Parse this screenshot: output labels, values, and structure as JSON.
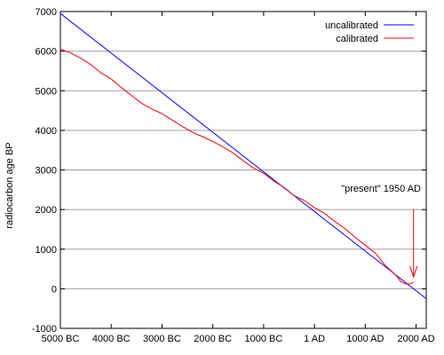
{
  "chart_data": {
    "type": "line",
    "title": "",
    "xlabel": "",
    "ylabel": "radiocarbon age BP",
    "xlim": [
      -5000,
      2200
    ],
    "ylim": [
      -1000,
      7000
    ],
    "x_ticks": [
      -5000,
      -4000,
      -3000,
      -2000,
      -1000,
      0,
      1000,
      2000
    ],
    "x_tick_labels": [
      "5000 BC",
      "4000 BC",
      "3000 BC",
      "2000 BC",
      "1000 BC",
      "1 AD",
      "1000 AD",
      "2000 AD"
    ],
    "y_ticks": [
      -1000,
      0,
      1000,
      2000,
      3000,
      4000,
      5000,
      6000,
      7000
    ],
    "y_tick_labels": [
      "-1000",
      "0",
      "1000",
      "2000",
      "3000",
      "4000",
      "5000",
      "6000",
      "7000"
    ],
    "grid": "horizontal",
    "legend_position": "top-right",
    "series": [
      {
        "name": "uncalibrated",
        "color": "#0000ff",
        "x": [
          -5000,
          2200
        ],
        "y": [
          6950,
          -250
        ]
      },
      {
        "name": "calibrated",
        "color": "#ff0000",
        "x": [
          -5000,
          -4800,
          -4600,
          -4400,
          -4200,
          -4000,
          -3800,
          -3600,
          -3400,
          -3200,
          -3000,
          -2800,
          -2600,
          -2400,
          -2200,
          -2000,
          -1800,
          -1600,
          -1400,
          -1200,
          -1000,
          -800,
          -600,
          -400,
          -200,
          0,
          200,
          400,
          600,
          800,
          1000,
          1200,
          1400,
          1600,
          1700,
          1800,
          1900,
          1950
        ],
        "y": [
          6050,
          5960,
          5820,
          5660,
          5450,
          5300,
          5080,
          4880,
          4680,
          4540,
          4420,
          4260,
          4100,
          3950,
          3840,
          3720,
          3580,
          3430,
          3230,
          3050,
          2920,
          2720,
          2560,
          2350,
          2230,
          2050,
          1900,
          1700,
          1520,
          1300,
          1100,
          900,
          580,
          350,
          180,
          120,
          130,
          170
        ]
      }
    ],
    "annotations": [
      {
        "text": "\"present\" 1950 AD",
        "x": 1950,
        "y": 2000,
        "arrow_to_y": 300,
        "color": "#ff0000"
      }
    ]
  }
}
